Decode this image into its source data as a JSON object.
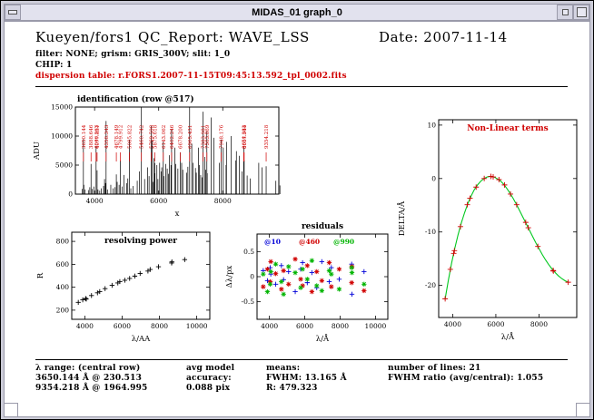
{
  "window": {
    "title": "MIDAS_01 graph_0"
  },
  "palette": {
    "red": "#d00000",
    "green": "#00b400",
    "blue": "#0000d8",
    "curve_green": "#00c81e"
  },
  "header": {
    "title": "Kueyen/fors1 QC_Report: WAVE_LSS",
    "date": "Date: 2007-11-14",
    "filter_line": "filter: NONE; grism: GRIS_300V; slit: 1_0",
    "chip_line": "CHIP: 1",
    "dispersion_line": "dispersion table: r.FORS1.2007-11-15T09:45:13.592_tpl_0002.fits"
  },
  "footer": {
    "col1": [
      "λ range: (central row)",
      "3650.144 Å @ 230.513",
      "9354.218 Å @ 1964.995"
    ],
    "col2": [
      "avg model",
      "accuracy:",
      "0.088 pix"
    ],
    "col3": [
      "means:",
      "FWHM: 13.165 Å",
      "R: 479.323"
    ],
    "col4": [
      "number of lines: 21",
      "FWHM ratio (avg/central): 1.055"
    ]
  },
  "chart_data": [
    {
      "id": "identification",
      "type": "spectrum",
      "title": "identification (row @517)",
      "title_pos": "above-left",
      "xlabel": "x",
      "ylabel": "ADU",
      "xlim": [
        3400,
        9750
      ],
      "ylim": [
        0,
        15000
      ],
      "xticks": [
        4000,
        6000,
        8000
      ],
      "yticks": [
        0,
        5000,
        10000,
        15000
      ],
      "label_color": "#d00000",
      "lines": [
        [
          3650.144,
          9500,
          "3650.144"
        ],
        [
          3888.646,
          5200,
          "3888.646"
        ],
        [
          4046.563,
          8300,
          "4046.563"
        ],
        [
          4077.831,
          4100,
          "4077.831"
        ],
        [
          4358.343,
          12600,
          "4358.343"
        ],
        [
          4678.149,
          3400,
          "4678.149"
        ],
        [
          4799.912,
          5800,
          "4799.912"
        ],
        [
          5085.822,
          9400,
          "5085.822"
        ],
        [
          5460.742,
          15000,
          "5460.742"
        ],
        [
          5769.598,
          11800,
          "5769.598"
        ],
        [
          5875.618,
          5400,
          "5875.618"
        ],
        [
          6143.062,
          9000,
          "6143.062"
        ],
        [
          6402.246,
          11200,
          "6402.246"
        ],
        [
          6678.2,
          7200,
          "6678.200"
        ],
        [
          6965.431,
          15000,
          "6965.431"
        ],
        [
          7383.981,
          14200,
          "7383.981"
        ],
        [
          7503.869,
          10800,
          "7503.869"
        ],
        [
          7948.176,
          9400,
          "7948.176"
        ],
        [
          8654.383,
          8200,
          "8654.383"
        ],
        [
          8667.944,
          5800,
          "8667.944"
        ],
        [
          9354.218,
          4800,
          "9354.218"
        ],
        [
          3610,
          900
        ],
        [
          3664,
          1600
        ],
        [
          3705,
          800
        ],
        [
          3805,
          700
        ],
        [
          3850,
          1200
        ],
        [
          3920,
          900
        ],
        [
          3975,
          1300
        ],
        [
          4105,
          800
        ],
        [
          4160,
          600
        ],
        [
          4205,
          1000
        ],
        [
          4280,
          1400
        ],
        [
          4310,
          2600
        ],
        [
          4340,
          1900
        ],
        [
          4400,
          800
        ],
        [
          4505,
          1600
        ],
        [
          4580,
          1000
        ],
        [
          4640,
          1200
        ],
        [
          4705,
          2100
        ],
        [
          4765,
          1600
        ],
        [
          4860,
          1300
        ],
        [
          4917,
          3300
        ],
        [
          5002,
          1900
        ],
        [
          5037,
          2700
        ],
        [
          5130,
          1000
        ],
        [
          5205,
          1400
        ],
        [
          5330,
          2300
        ],
        [
          5402,
          3900
        ],
        [
          5560,
          2600
        ],
        [
          5652,
          4600
        ],
        [
          5700,
          3100
        ],
        [
          5790,
          9200
        ],
        [
          5820,
          2100
        ],
        [
          5852,
          6200
        ],
        [
          5882,
          3600
        ],
        [
          5944,
          5000
        ],
        [
          5976,
          2600
        ],
        [
          6030,
          5400
        ],
        [
          6074,
          3900
        ],
        [
          6096,
          4600
        ],
        [
          6164,
          3100
        ],
        [
          6217,
          5200
        ],
        [
          6266,
          4400
        ],
        [
          6305,
          3500
        ],
        [
          6334,
          6700
        ],
        [
          6383,
          5000
        ],
        [
          6507,
          8000
        ],
        [
          6533,
          5200
        ],
        [
          6599,
          4400
        ],
        [
          6717,
          5400
        ],
        [
          6752,
          4200
        ],
        [
          6871,
          3700
        ],
        [
          6911,
          4700
        ],
        [
          7032,
          8700
        ],
        [
          7067,
          5400
        ],
        [
          7147,
          4500
        ],
        [
          7174,
          3700
        ],
        [
          7245,
          8000
        ],
        [
          7272,
          5000
        ],
        [
          7311,
          3300
        ],
        [
          7354,
          2900
        ],
        [
          7436,
          6400
        ],
        [
          7472,
          4200
        ],
        [
          7515,
          3600
        ],
        [
          7635,
          13200
        ],
        [
          7724,
          9700
        ],
        [
          7891,
          5400
        ],
        [
          8015,
          8000
        ],
        [
          8103,
          5000
        ],
        [
          8115,
          9000
        ],
        [
          8264,
          10000
        ],
        [
          8408,
          5800
        ],
        [
          8425,
          7400
        ],
        [
          8521,
          6600
        ],
        [
          8605,
          3900
        ],
        [
          8761,
          3200
        ],
        [
          8853,
          2700
        ],
        [
          9123,
          5400
        ],
        [
          9224,
          4600
        ],
        [
          9657,
          2300
        ],
        [
          9784,
          1500
        ]
      ]
    },
    {
      "id": "resolving",
      "type": "scatter",
      "title": "resolving power",
      "title_pos": "inside",
      "xlabel": "λ/AA",
      "ylabel": "R",
      "xlim": [
        3300,
        10700
      ],
      "ylim": [
        120,
        880
      ],
      "xticks": [
        4000,
        6000,
        8000,
        10000
      ],
      "yticks": [
        200,
        400,
        600,
        800
      ],
      "series": [
        {
          "name": "R per line",
          "marker": "plus",
          "color": "#000000",
          "points": [
            [
              3650,
              268
            ],
            [
              3888,
              290
            ],
            [
              4046,
              301
            ],
            [
              4078,
              297
            ],
            [
              4358,
              327
            ],
            [
              4678,
              351
            ],
            [
              4800,
              362
            ],
            [
              5086,
              388
            ],
            [
              5461,
              416
            ],
            [
              5770,
              437
            ],
            [
              5876,
              449
            ],
            [
              6143,
              461
            ],
            [
              6402,
              477
            ],
            [
              6678,
              497
            ],
            [
              6965,
              520
            ],
            [
              7384,
              541
            ],
            [
              7504,
              555
            ],
            [
              7948,
              579
            ],
            [
              8654,
              611
            ],
            [
              8668,
              621
            ],
            [
              9354,
              641
            ]
          ]
        }
      ]
    },
    {
      "id": "residuals",
      "type": "scatter",
      "title": "residuals",
      "title_pos": "above",
      "xlabel": "λ/Å",
      "ylabel": "Δλ/px",
      "xlim": [
        3300,
        10700
      ],
      "ylim": [
        -0.85,
        0.85
      ],
      "xticks": [
        4000,
        6000,
        8000,
        10000
      ],
      "yticks": [
        0.5,
        0,
        -0.5
      ],
      "legend": [
        {
          "label": "@10",
          "color": "#0000d8"
        },
        {
          "label": "@460",
          "color": "#d00000"
        },
        {
          "label": "@990",
          "color": "#00b400"
        }
      ],
      "series": [
        {
          "name": "@10",
          "marker": "plus",
          "color": "#0000d8",
          "points": [
            [
              3650,
              0.12
            ],
            [
              3889,
              -0.08
            ],
            [
              4047,
              0.18
            ],
            [
              4078,
              0.05
            ],
            [
              4358,
              -0.15
            ],
            [
              4678,
              0.22
            ],
            [
              4800,
              -0.06
            ],
            [
              5086,
              0.1
            ],
            [
              5461,
              -0.3
            ],
            [
              5770,
              0.15
            ],
            [
              5876,
              0.28
            ],
            [
              6143,
              -0.12
            ],
            [
              6402,
              0.08
            ],
            [
              6678,
              -0.22
            ],
            [
              6965,
              0.3
            ],
            [
              7384,
              -0.1
            ],
            [
              7504,
              0.18
            ],
            [
              7948,
              -0.05
            ],
            [
              8654,
              0.25
            ],
            [
              8668,
              -0.35
            ],
            [
              9354,
              0.1
            ]
          ]
        },
        {
          "name": "@460",
          "marker": "star",
          "color": "#d00000",
          "points": [
            [
              3650,
              -0.2
            ],
            [
              3889,
              0.15
            ],
            [
              4047,
              -0.1
            ],
            [
              4078,
              0.3
            ],
            [
              4358,
              0.06
            ],
            [
              4678,
              -0.25
            ],
            [
              4800,
              0.12
            ],
            [
              5086,
              -0.15
            ],
            [
              5461,
              0.35
            ],
            [
              5770,
              -0.05
            ],
            [
              5876,
              -0.18
            ],
            [
              6143,
              0.22
            ],
            [
              6402,
              -0.3
            ],
            [
              6678,
              0.1
            ],
            [
              6965,
              -0.08
            ],
            [
              7384,
              0.28
            ],
            [
              7504,
              -0.2
            ],
            [
              7948,
              0.15
            ],
            [
              8654,
              -0.12
            ],
            [
              8668,
              0.2
            ],
            [
              9354,
              -0.28
            ]
          ]
        },
        {
          "name": "@990",
          "marker": "star",
          "color": "#00b400",
          "points": [
            [
              3650,
              0.05
            ],
            [
              3889,
              -0.3
            ],
            [
              4047,
              -0.15
            ],
            [
              4078,
              0.1
            ],
            [
              4358,
              0.25
            ],
            [
              4678,
              -0.1
            ],
            [
              4800,
              -0.35
            ],
            [
              5086,
              0.2
            ],
            [
              5461,
              0.08
            ],
            [
              5770,
              -0.22
            ],
            [
              5876,
              0.15
            ],
            [
              6143,
              -0.05
            ],
            [
              6402,
              0.32
            ],
            [
              6678,
              -0.18
            ],
            [
              6965,
              -0.28
            ],
            [
              7384,
              0.12
            ],
            [
              7504,
              0.05
            ],
            [
              7948,
              -0.25
            ],
            [
              8654,
              0.18
            ],
            [
              8668,
              0.08
            ],
            [
              9354,
              -0.15
            ]
          ]
        }
      ]
    },
    {
      "id": "nonlinear",
      "type": "line-markers",
      "title": "Non-Linear terms",
      "title_pos": "inside",
      "title_color": "#d00000",
      "xlabel": "λ/Å",
      "ylabel": "DELTA/Å",
      "xlim": [
        3350,
        9750
      ],
      "ylim": [
        -26,
        11
      ],
      "xticks": [
        4000,
        6000,
        8000
      ],
      "yticks": [
        10,
        0,
        -10,
        -20
      ],
      "curve_color": "#00c81e",
      "marker_color": "#d00000",
      "curve": [
        [
          3650,
          -22.5
        ],
        [
          3800,
          -19.0
        ],
        [
          3950,
          -15.8
        ],
        [
          4100,
          -13.0
        ],
        [
          4250,
          -10.5
        ],
        [
          4400,
          -8.3
        ],
        [
          4550,
          -6.4
        ],
        [
          4700,
          -4.7
        ],
        [
          4850,
          -3.3
        ],
        [
          5000,
          -2.1
        ],
        [
          5150,
          -1.2
        ],
        [
          5300,
          -0.5
        ],
        [
          5450,
          0.0
        ],
        [
          5600,
          0.3
        ],
        [
          5750,
          0.4
        ],
        [
          5900,
          0.3
        ],
        [
          6050,
          0.0
        ],
        [
          6200,
          -0.4
        ],
        [
          6350,
          -1.0
        ],
        [
          6500,
          -1.8
        ],
        [
          6650,
          -2.7
        ],
        [
          6800,
          -3.7
        ],
        [
          6950,
          -4.8
        ],
        [
          7100,
          -6.0
        ],
        [
          7250,
          -7.2
        ],
        [
          7400,
          -8.4
        ],
        [
          7550,
          -9.6
        ],
        [
          7700,
          -10.8
        ],
        [
          7850,
          -12.0
        ],
        [
          8000,
          -13.1
        ],
        [
          8150,
          -14.2
        ],
        [
          8300,
          -15.2
        ],
        [
          8450,
          -16.1
        ],
        [
          8600,
          -16.9
        ],
        [
          8750,
          -17.6
        ],
        [
          8900,
          -18.2
        ],
        [
          9050,
          -18.7
        ],
        [
          9200,
          -19.1
        ],
        [
          9354,
          -19.4
        ]
      ],
      "points": [
        [
          3650,
          -22.5
        ],
        [
          3889,
          -17.0
        ],
        [
          4047,
          -14.0
        ],
        [
          4078,
          -13.5
        ],
        [
          4358,
          -9.0
        ],
        [
          4678,
          -4.9
        ],
        [
          4800,
          -3.7
        ],
        [
          5086,
          -1.6
        ],
        [
          5461,
          0.0
        ],
        [
          5770,
          0.4
        ],
        [
          5876,
          0.3
        ],
        [
          6143,
          -0.2
        ],
        [
          6402,
          -1.2
        ],
        [
          6678,
          -2.9
        ],
        [
          6965,
          -4.9
        ],
        [
          7384,
          -8.2
        ],
        [
          7504,
          -9.2
        ],
        [
          7948,
          -12.7
        ],
        [
          8654,
          -17.2
        ],
        [
          8668,
          -17.3
        ],
        [
          9354,
          -19.4
        ]
      ]
    }
  ]
}
